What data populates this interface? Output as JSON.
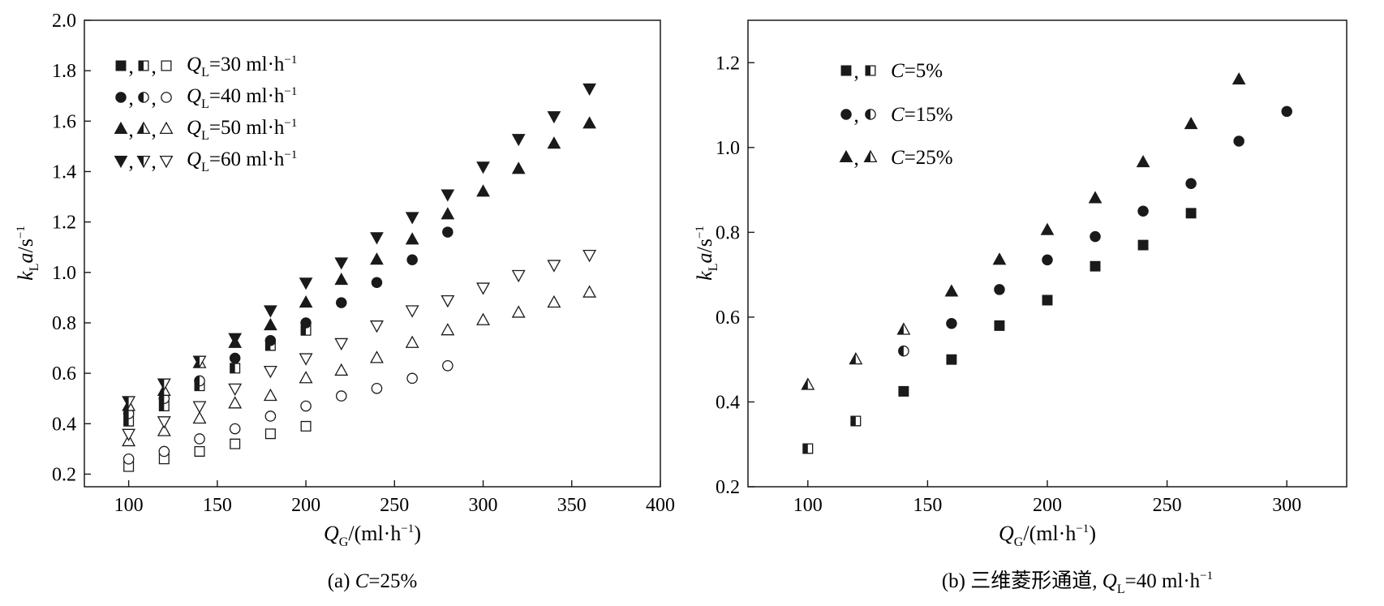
{
  "chart_data": [
    {
      "type": "scatter",
      "caption": "(a) C=25%",
      "xlabel": "QG/(ml·h−1)",
      "ylabel": "kLa/s−1",
      "xlim": [
        75,
        400
      ],
      "ylim": [
        0.15,
        2.0
      ],
      "xticks": [
        100,
        150,
        200,
        250,
        300,
        350,
        400
      ],
      "yticks": [
        0.2,
        0.4,
        0.6,
        0.8,
        1.0,
        1.2,
        1.4,
        1.6,
        1.8,
        2.0
      ],
      "ytick_labels": [
        "0.2",
        "0.4",
        "0.6",
        "0.8",
        "1.0",
        "1.2",
        "1.4",
        "1.6",
        "1.8",
        "2.0"
      ],
      "legend_position": "top-left",
      "legend": [
        {
          "markers": [
            "square-filled",
            "square-half",
            "square-open"
          ],
          "label": "QL=30 ml·h−1"
        },
        {
          "markers": [
            "circle-filled",
            "circle-half",
            "circle-open"
          ],
          "label": "QL=40 ml·h−1"
        },
        {
          "markers": [
            "triangle-up-filled",
            "triangle-up-half",
            "triangle-up-open"
          ],
          "label": "QL=50 ml·h−1"
        },
        {
          "markers": [
            "triangle-down-filled",
            "triangle-down-half",
            "triangle-down-open"
          ],
          "label": "QL=60 ml·h−1"
        }
      ],
      "series": [
        {
          "marker": "triangle-up-open",
          "x": [
            100,
            120,
            140,
            160,
            180,
            200,
            220,
            240,
            260,
            280,
            300,
            320,
            340,
            360
          ],
          "y": [
            0.33,
            0.37,
            0.42,
            0.48,
            0.51,
            0.58,
            0.61,
            0.66,
            0.72,
            0.77,
            0.81,
            0.84,
            0.88,
            0.92
          ]
        },
        {
          "marker": "triangle-down-open",
          "x": [
            100,
            120,
            140,
            160,
            180,
            200,
            220,
            240,
            260,
            280,
            300,
            320,
            340,
            360
          ],
          "y": [
            0.36,
            0.41,
            0.47,
            0.54,
            0.61,
            0.66,
            0.72,
            0.79,
            0.85,
            0.89,
            0.94,
            0.99,
            1.03,
            1.07
          ]
        },
        {
          "marker": "square-open",
          "x": [
            100,
            120,
            140,
            160,
            180,
            200
          ],
          "y": [
            0.23,
            0.26,
            0.29,
            0.32,
            0.36,
            0.39
          ]
        },
        {
          "marker": "circle-open",
          "x": [
            100,
            120,
            140,
            160,
            180,
            200,
            220,
            240,
            260,
            280
          ],
          "y": [
            0.26,
            0.29,
            0.34,
            0.38,
            0.43,
            0.47,
            0.51,
            0.54,
            0.58,
            0.63
          ]
        },
        {
          "marker": "square-half",
          "x": [
            100,
            120,
            140,
            160,
            180,
            200
          ],
          "y": [
            0.41,
            0.47,
            0.55,
            0.62,
            0.71,
            0.77
          ]
        },
        {
          "marker": "circle-half",
          "x": [
            100,
            120,
            140
          ],
          "y": [
            0.44,
            0.5,
            0.57
          ]
        },
        {
          "marker": "triangle-up-half",
          "x": [
            100,
            120,
            140
          ],
          "y": [
            0.47,
            0.53,
            0.64
          ]
        },
        {
          "marker": "triangle-down-half",
          "x": [
            100,
            120,
            140
          ],
          "y": [
            0.49,
            0.56,
            0.65
          ]
        },
        {
          "marker": "circle-filled",
          "x": [
            160,
            180,
            200,
            220,
            240,
            260,
            280
          ],
          "y": [
            0.66,
            0.73,
            0.8,
            0.88,
            0.96,
            1.05,
            1.16
          ]
        },
        {
          "marker": "triangle-up-filled",
          "x": [
            160,
            180,
            200,
            220,
            240,
            260,
            280,
            300,
            320,
            340,
            360
          ],
          "y": [
            0.72,
            0.79,
            0.88,
            0.97,
            1.05,
            1.13,
            1.23,
            1.32,
            1.41,
            1.51,
            1.59
          ]
        },
        {
          "marker": "triangle-down-filled",
          "x": [
            160,
            180,
            200,
            220,
            240,
            260,
            280,
            300,
            320,
            340,
            360
          ],
          "y": [
            0.74,
            0.85,
            0.96,
            1.04,
            1.14,
            1.22,
            1.31,
            1.42,
            1.53,
            1.62,
            1.73
          ]
        }
      ]
    },
    {
      "type": "scatter",
      "caption": "(b) 三维菱形通道, QL=40 ml·h−1",
      "xlabel": "QG/(ml·h−1)",
      "ylabel": "kLa/s−1",
      "xlim": [
        75,
        325
      ],
      "ylim": [
        0.2,
        1.3
      ],
      "xticks": [
        100,
        150,
        200,
        250,
        300
      ],
      "yticks": [
        0.2,
        0.4,
        0.6,
        0.8,
        1.0,
        1.2
      ],
      "ytick_labels": [
        "0.2",
        "0.4",
        "0.6",
        "0.8",
        "1.0",
        "1.2"
      ],
      "legend_position": "top-left",
      "legend": [
        {
          "markers": [
            "square-filled",
            "square-half"
          ],
          "label": "C=5%"
        },
        {
          "markers": [
            "circle-filled",
            "circle-half"
          ],
          "label": "C=15%"
        },
        {
          "markers": [
            "triangle-up-filled",
            "triangle-up-half"
          ],
          "label": "C=25%"
        }
      ],
      "series": [
        {
          "marker": "square-half",
          "x": [
            100,
            120
          ],
          "y": [
            0.29,
            0.355
          ]
        },
        {
          "marker": "square-filled",
          "x": [
            140,
            160,
            180,
            200,
            220,
            240,
            260
          ],
          "y": [
            0.425,
            0.5,
            0.58,
            0.64,
            0.72,
            0.77,
            0.845
          ]
        },
        {
          "marker": "circle-half",
          "x": [
            140
          ],
          "y": [
            0.52
          ]
        },
        {
          "marker": "circle-filled",
          "x": [
            160,
            180,
            200,
            220,
            240,
            260,
            280,
            300
          ],
          "y": [
            0.585,
            0.665,
            0.735,
            0.79,
            0.85,
            0.915,
            1.015,
            1.085
          ]
        },
        {
          "marker": "triangle-up-half",
          "x": [
            100,
            120,
            140
          ],
          "y": [
            0.44,
            0.5,
            0.57
          ]
        },
        {
          "marker": "triangle-up-filled",
          "x": [
            160,
            180,
            200,
            220,
            240,
            260,
            280
          ],
          "y": [
            0.66,
            0.735,
            0.805,
            0.88,
            0.965,
            1.055,
            1.16
          ]
        }
      ]
    }
  ],
  "label_parts": {
    "q": "Q",
    "g": "G",
    "l": "L",
    "k": "k",
    "a": "a",
    "ml_h": "/(ml·h",
    "minus1": "−1",
    "close": ")",
    "per_s": "/s",
    "c_var": "C",
    "legend_a_prefix": "=",
    "legend_a_values": [
      "30",
      "40",
      "50",
      "60"
    ],
    "unit": " ml·h",
    "legend_b_values": [
      "=5%",
      "=15%",
      "=25%"
    ],
    "comma": ",",
    "cap_a_open": "(a) ",
    "cap_a_rest": "=25%",
    "cap_b_open": "(b) 三维菱形通道, ",
    "cap_b_rest": "=40 ml·h"
  },
  "colors": {
    "ink": "#1a1a1a",
    "background": "#ffffff"
  }
}
